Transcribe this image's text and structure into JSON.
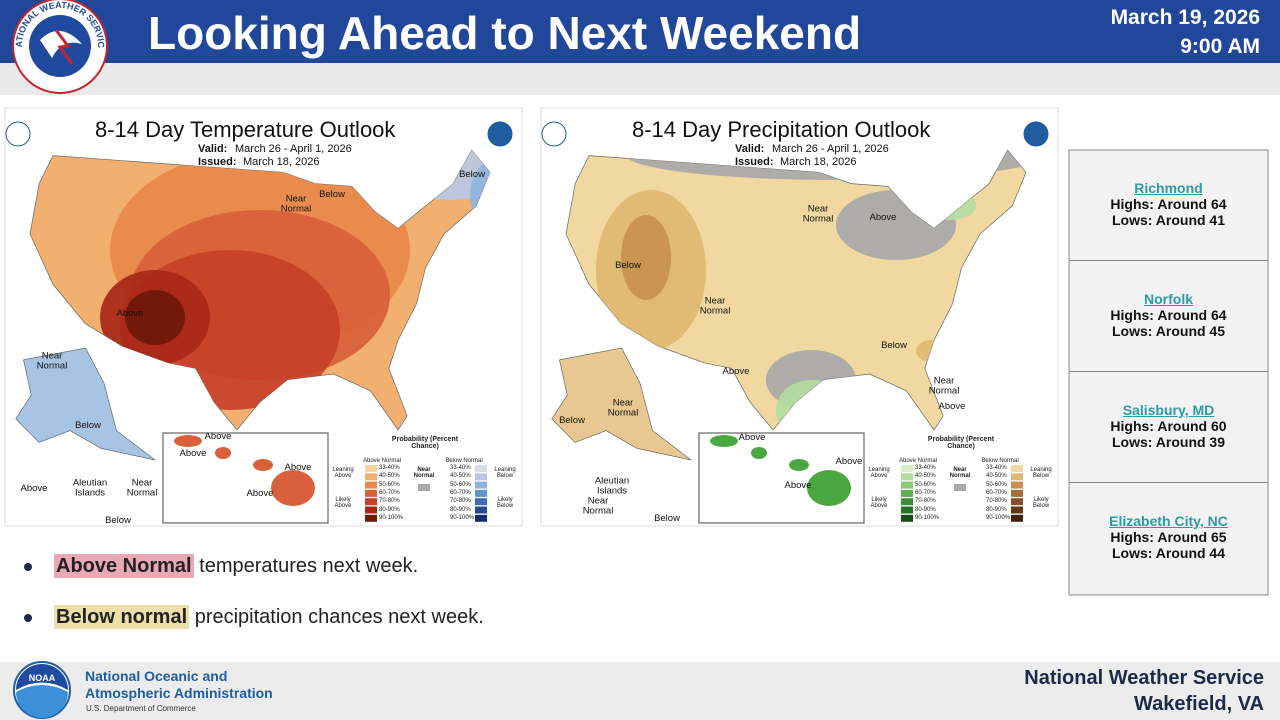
{
  "header": {
    "title": "Looking Ahead to Next Weekend",
    "date": "March 19, 2026",
    "time": "9:00 AM",
    "logo_text": "NATIONAL WEATHER SERVICE"
  },
  "maps": [
    {
      "title": "8-14 Day Temperature Outlook",
      "valid_label": "Valid:",
      "valid": "March 26 - April 1, 2026",
      "issued_label": "Issued:",
      "issued": "March 18, 2026",
      "labels": [
        "Below",
        "Below",
        "Near Normal",
        "Above",
        "Near Normal",
        "Below",
        "Above",
        "Above",
        "Above",
        "Above",
        "Above",
        "Aleutian Islands",
        "Near Normal",
        "Below"
      ],
      "legend": {
        "title": "Probability (Percent Chance)",
        "above": "Above Normal",
        "below": "Below Normal",
        "near": "Near Normal",
        "ranges": [
          "33-40%",
          "40-50%",
          "50-60%",
          "60-70%",
          "70-80%",
          "80-90%",
          "90-100%"
        ],
        "leaning_above": "Leaning Above",
        "likely_above": "Likely Above",
        "leaning_below": "Leaning Below",
        "likely_below": "Likely Below"
      }
    },
    {
      "title": "8-14 Day Precipitation Outlook",
      "valid_label": "Valid:",
      "valid": "March 26 - April 1, 2026",
      "issued_label": "Issued:",
      "issued": "March 18, 2026",
      "labels": [
        "Near Normal",
        "Above",
        "Below",
        "Near Normal",
        "Above",
        "Below",
        "Near Normal",
        "Above",
        "Below",
        "Near Normal",
        "Above",
        "Above",
        "Above",
        "Aleutian Islands",
        "Near Normal",
        "Below"
      ],
      "legend": {
        "title": "Probability (Percent Chance)",
        "above": "Above Normal",
        "below": "Below Normal",
        "near": "Near Normal",
        "ranges": [
          "33-40%",
          "40-50%",
          "50-60%",
          "60-70%",
          "70-80%",
          "80-90%",
          "90-100%"
        ],
        "leaning_above": "Leaning Above",
        "likely_above": "Likely Above",
        "leaning_below": "Leaning Below",
        "likely_below": "Likely Below"
      }
    }
  ],
  "cities": [
    {
      "name": "Richmond",
      "highs": "Highs: Around 64",
      "lows": "Lows: Around 41"
    },
    {
      "name": "Norfolk",
      "highs": "Highs: Around 64",
      "lows": "Lows: Around 45"
    },
    {
      "name": "Salisbury, MD",
      "highs": "Highs: Around 60",
      "lows": "Lows: Around 39"
    },
    {
      "name": "Elizabeth City, NC",
      "highs": "Highs: Around 65",
      "lows": "Lows: Around 44"
    }
  ],
  "bullets": [
    {
      "highlight": "Above Normal",
      "text": "temperatures next week."
    },
    {
      "highlight": "Below normal",
      "text": "precipitation chances next week."
    }
  ],
  "footer": {
    "noaa_logo": "NOAA",
    "agency_line1": "National Oceanic and",
    "agency_line2": "Atmospheric Administration",
    "department": "U.S. Department of Commerce",
    "office": "National Weather Service",
    "location": "Wakefield, VA"
  }
}
